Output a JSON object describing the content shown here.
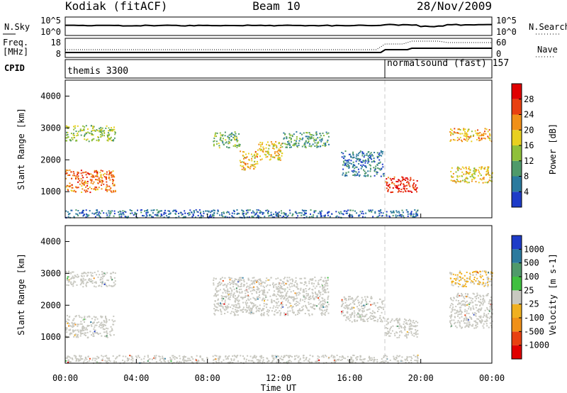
{
  "header": {
    "station": "Kodiak (fitACF)",
    "beam": "Beam 10",
    "date": "28/Nov/2009"
  },
  "noise_panel": {
    "left_label": "N.Sky",
    "right_label": "N.Search",
    "left_ticks": [
      "10^5",
      "10^0"
    ],
    "right_ticks": [
      "10^5",
      "10^0"
    ]
  },
  "freq_panel": {
    "left_label_line1": "Freq.",
    "left_label_line2": "[MHz]",
    "right_label": "Nave",
    "left_ticks": [
      "18",
      "8"
    ],
    "right_ticks": [
      "60",
      "0"
    ]
  },
  "cpid": {
    "label": "CPID",
    "modes": [
      {
        "name": "themis 3300",
        "start_hour": 0,
        "end_hour": 18
      },
      {
        "name": "normalsound (fast) 157",
        "start_hour": 18,
        "end_hour": 24
      }
    ]
  },
  "x_axis": {
    "label": "Time UT",
    "ticks": [
      "00:00",
      "04:00",
      "08:00",
      "12:00",
      "16:00",
      "20:00",
      "00:00"
    ]
  },
  "chart_data": [
    {
      "type": "heatmap",
      "title": "",
      "xlabel": "",
      "ylabel": "Slant Range [km]",
      "xlim": [
        0,
        24
      ],
      "ylim": [
        180,
        4500
      ],
      "y_ticks": [
        1000,
        2000,
        3000,
        4000
      ],
      "colorbar": {
        "label": "Power [dB]",
        "ticks": [
          "4",
          "8",
          "12",
          "16",
          "20",
          "24",
          "28"
        ],
        "range": [
          0,
          32
        ],
        "colors": [
          "#1e3cc8",
          "#2b7a9e",
          "#4f9a6a",
          "#8fc03a",
          "#e8d020",
          "#f09018",
          "#e84010",
          "#e00000"
        ]
      },
      "regions": [
        {
          "t0": 0.0,
          "t1": 2.8,
          "r0": 1000,
          "r1": 1700,
          "level": 24
        },
        {
          "t0": 0.0,
          "t1": 2.8,
          "r0": 2600,
          "r1": 3100,
          "level": 14
        },
        {
          "t0": 8.3,
          "t1": 9.8,
          "r0": 2400,
          "r1": 2900,
          "level": 12
        },
        {
          "t0": 9.8,
          "t1": 10.8,
          "r0": 1700,
          "r1": 2300,
          "level": 20
        },
        {
          "t0": 10.8,
          "t1": 12.2,
          "r0": 2000,
          "r1": 2600,
          "level": 18
        },
        {
          "t0": 12.2,
          "t1": 14.8,
          "r0": 2400,
          "r1": 2900,
          "level": 10
        },
        {
          "t0": 15.5,
          "t1": 17.9,
          "r0": 1500,
          "r1": 2300,
          "level": 6
        },
        {
          "t0": 18.0,
          "t1": 19.8,
          "r0": 1000,
          "r1": 1500,
          "level": 28
        },
        {
          "t0": 21.6,
          "t1": 24.0,
          "r0": 1300,
          "r1": 1800,
          "level": 18
        },
        {
          "t0": 21.6,
          "t1": 24.0,
          "r0": 2600,
          "r1": 3000,
          "level": 20
        },
        {
          "t0": 0.0,
          "t1": 19.8,
          "r0": 200,
          "r1": 450,
          "level": 5
        }
      ]
    },
    {
      "type": "heatmap",
      "title": "",
      "xlabel": "Time UT",
      "ylabel": "Slant Range [km]",
      "xlim": [
        0,
        24
      ],
      "ylim": [
        180,
        4500
      ],
      "y_ticks": [
        1000,
        2000,
        3000,
        4000
      ],
      "colorbar": {
        "label": "Velocity [m s-1]",
        "ticks": [
          "1000",
          "500",
          "100",
          "25",
          "-25",
          "-100",
          "-500",
          "-1000"
        ],
        "range": [
          -1250,
          1250
        ],
        "colors": [
          "#1e3cc8",
          "#2b7a9e",
          "#4f9a6a",
          "#40c040",
          "#c8c8c0",
          "#f0b020",
          "#f09018",
          "#e84010",
          "#e00000"
        ]
      },
      "regions": [
        {
          "t0": 0.0,
          "t1": 2.8,
          "r0": 1000,
          "r1": 1700,
          "level": 0
        },
        {
          "t0": 0.0,
          "t1": 2.8,
          "r0": 2600,
          "r1": 3100,
          "level": 0
        },
        {
          "t0": 8.3,
          "t1": 14.8,
          "r0": 1700,
          "r1": 2900,
          "level": 0
        },
        {
          "t0": 15.5,
          "t1": 17.9,
          "r0": 1500,
          "r1": 2300,
          "level": 0
        },
        {
          "t0": 18.0,
          "t1": 19.8,
          "r0": 1000,
          "r1": 1600,
          "level": -60
        },
        {
          "t0": 21.6,
          "t1": 24.0,
          "r0": 1300,
          "r1": 2400,
          "level": 0
        },
        {
          "t0": 21.6,
          "t1": 24.0,
          "r0": 2600,
          "r1": 3100,
          "level": -150
        },
        {
          "t0": 0.0,
          "t1": 19.8,
          "r0": 200,
          "r1": 450,
          "level": -60
        }
      ]
    }
  ]
}
